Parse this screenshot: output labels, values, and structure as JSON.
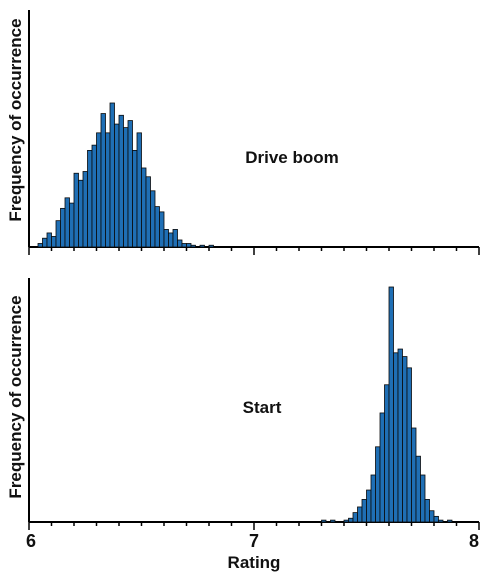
{
  "chart_data": [
    {
      "type": "bar",
      "label": "Drive boom",
      "ylabel": "Frequency of occurrence",
      "xlim": [
        6,
        8
      ],
      "bin_width": 0.02,
      "bar_color": "#1f6fb5",
      "x": [
        6.05,
        6.07,
        6.09,
        6.11,
        6.13,
        6.15,
        6.17,
        6.19,
        6.21,
        6.23,
        6.25,
        6.27,
        6.29,
        6.31,
        6.33,
        6.35,
        6.37,
        6.39,
        6.41,
        6.43,
        6.45,
        6.47,
        6.49,
        6.51,
        6.53,
        6.55,
        6.57,
        6.59,
        6.61,
        6.63,
        6.65,
        6.67,
        6.69,
        6.71,
        6.73,
        6.75,
        6.77,
        6.79,
        6.81
      ],
      "values": [
        2,
        5,
        8,
        6,
        15,
        22,
        28,
        25,
        42,
        38,
        43,
        55,
        58,
        65,
        76,
        65,
        82,
        70,
        75,
        68,
        72,
        55,
        65,
        45,
        40,
        32,
        23,
        20,
        10,
        8,
        10,
        4,
        2,
        2,
        1,
        0,
        1,
        0,
        1
      ]
    },
    {
      "type": "bar",
      "label": "Start",
      "ylabel": "Frequency of occurrence",
      "xlabel": "Rating",
      "xlim": [
        6,
        8
      ],
      "bin_width": 0.02,
      "bar_color": "#1f6fb5",
      "x": [
        7.31,
        7.35,
        7.41,
        7.43,
        7.45,
        7.47,
        7.49,
        7.51,
        7.53,
        7.55,
        7.57,
        7.59,
        7.61,
        7.63,
        7.65,
        7.67,
        7.69,
        7.71,
        7.73,
        7.75,
        7.77,
        7.79,
        7.81,
        7.83,
        7.87
      ],
      "values": [
        1,
        1,
        1,
        2,
        5,
        8,
        12,
        17,
        25,
        40,
        58,
        73,
        125,
        90,
        92,
        88,
        82,
        50,
        35,
        25,
        12,
        6,
        3,
        1,
        1
      ]
    }
  ],
  "axis": {
    "ticks": [
      "6",
      "7",
      "8"
    ]
  }
}
